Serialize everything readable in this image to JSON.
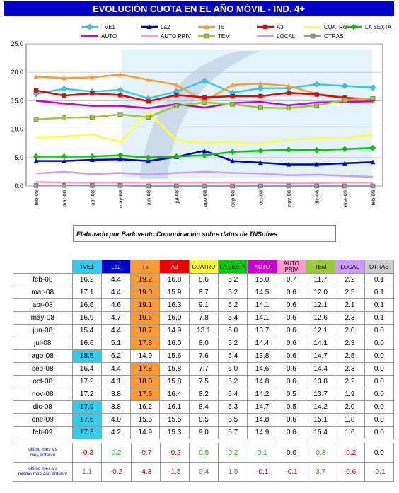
{
  "title": "EVOLUCIÓN CUOTA EN EL AÑO MÓVIL - IND. 4+",
  "caption": "Elaborado por Barlovento Comunicación sobre datos de TNSofres",
  "chart_data": {
    "type": "line",
    "categories": [
      "feb-08",
      "mar-08",
      "abr-08",
      "may-08",
      "jun-08",
      "jul-08",
      "ago-08",
      "sep-08",
      "oct-08",
      "nov-08",
      "dic-08",
      "ene-09",
      "feb-09"
    ],
    "ylim": [
      0,
      25
    ],
    "yticks": [
      "0.0",
      "5.0",
      "10.0",
      "15.0",
      "20.0",
      "25.0"
    ],
    "grid": true,
    "legend_position": "top",
    "series": [
      {
        "name": "TVE1",
        "color": "#33ccee",
        "marker": "diamond",
        "values": [
          16.2,
          17.1,
          16.6,
          16.9,
          15.4,
          16.6,
          18.5,
          16.4,
          17.2,
          17.2,
          17.9,
          17.6,
          17.3
        ]
      },
      {
        "name": "La2",
        "color": "#0000cc",
        "marker": "triangle",
        "values": [
          4.4,
          4.4,
          4.6,
          4.7,
          4.4,
          5.1,
          6.2,
          4.4,
          4.1,
          3.8,
          3.8,
          4.0,
          4.2
        ]
      },
      {
        "name": "T5",
        "color": "#ff9933",
        "marker": "triangle",
        "values": [
          19.2,
          19.0,
          19.1,
          19.6,
          18.7,
          17.8,
          14.9,
          17.8,
          18.0,
          17.6,
          16.2,
          15.6,
          14.9
        ]
      },
      {
        "name": "A3",
        "color": "#ee0000",
        "marker": "square",
        "values": [
          16.8,
          15.9,
          16.3,
          16.0,
          14.9,
          16.0,
          15.6,
          15.8,
          15.8,
          16.4,
          16.1,
          15.5,
          15.3
        ]
      },
      {
        "name": "CUATRO",
        "color": "#ffff33",
        "marker": "none",
        "values": [
          8.6,
          8.7,
          9.1,
          7.8,
          13.1,
          8.0,
          7.6,
          7.7,
          7.5,
          8.2,
          8.4,
          8.5,
          9.0
        ]
      },
      {
        "name": "LA SEXTA",
        "color": "#00cc00",
        "marker": "diamond",
        "values": [
          5.2,
          5.2,
          5.2,
          5.4,
          5.0,
          5.2,
          5.4,
          6.0,
          6.2,
          6.4,
          6.3,
          6.5,
          6.7
        ]
      },
      {
        "name": "AUTO",
        "color": "#cc00cc",
        "marker": "none",
        "values": [
          15.0,
          14.5,
          14.1,
          14.1,
          13.7,
          14.4,
          13.8,
          14.6,
          14.8,
          14.2,
          14.7,
          14.8,
          14.9
        ]
      },
      {
        "name": "AUTO PRIV",
        "color": "#ff99cc",
        "marker": "none",
        "values": [
          0.7,
          0.6,
          0.6,
          0.6,
          0.6,
          0.6,
          0.6,
          0.6,
          0.6,
          0.5,
          0.5,
          0.6,
          0.6
        ]
      },
      {
        "name": "TEM",
        "color": "#99cc33",
        "marker": "square",
        "values": [
          11.7,
          12.0,
          12.1,
          12.6,
          12.1,
          14.1,
          14.7,
          14.4,
          13.8,
          13.7,
          14.2,
          15.1,
          15.4
        ]
      },
      {
        "name": "LOCAL",
        "color": "#cc99ff",
        "marker": "none",
        "values": [
          2.2,
          2.5,
          2.1,
          2.3,
          2.0,
          2.3,
          2.5,
          2.3,
          2.2,
          1.9,
          2.0,
          1.8,
          1.6
        ]
      },
      {
        "name": "OTRAS",
        "color": "#999999",
        "marker": "square",
        "values": [
          0.1,
          0.1,
          0.1,
          0.1,
          0.0,
          0.0,
          0.0,
          0.0,
          0.0,
          0.0,
          0.0,
          0.0,
          0.0
        ]
      }
    ]
  },
  "table": {
    "headers": [
      {
        "label": "TVE1",
        "bg": "#33ccee",
        "fg": "#000000"
      },
      {
        "label": "La2",
        "bg": "#0000cc",
        "fg": "#ffffff"
      },
      {
        "label": "T5",
        "bg": "#ff9933",
        "fg": "#000000"
      },
      {
        "label": "A3",
        "bg": "#ee0000",
        "fg": "#ffffff"
      },
      {
        "label": "CUATRO",
        "bg": "#ffff33",
        "fg": "#000000"
      },
      {
        "label": "LA SEXTA",
        "bg": "#00cc00",
        "fg": "#000000"
      },
      {
        "label": "AUTO",
        "bg": "#cc00cc",
        "fg": "#ffffff"
      },
      {
        "label": "AUTO PRIV",
        "bg": "#ff99cc",
        "fg": "#000000"
      },
      {
        "label": "TEM",
        "bg": "#99cc33",
        "fg": "#000000"
      },
      {
        "label": "LOCAL",
        "bg": "#cc99ff",
        "fg": "#000000"
      },
      {
        "label": "OTRAS",
        "bg": "#cccccc",
        "fg": "#000000"
      }
    ],
    "highlight_colors": {
      "TVE1": "#33ccee",
      "T5": "#ff9933"
    },
    "rows": [
      {
        "month": "feb-08",
        "values": [
          "16.2",
          "4.4",
          "19.2",
          "16.8",
          "8.6",
          "5.2",
          "15.0",
          "0.7",
          "11.7",
          "2.2",
          "0.1"
        ],
        "hl": [
          2
        ]
      },
      {
        "month": "mar-08",
        "values": [
          "17.1",
          "4.4",
          "19.0",
          "15.9",
          "8.7",
          "5.2",
          "14.5",
          "0.6",
          "12.0",
          "2.5",
          "0.1"
        ],
        "hl": [
          2
        ]
      },
      {
        "month": "abr-08",
        "values": [
          "16.6",
          "4.6",
          "19.1",
          "16.3",
          "9.1",
          "5.2",
          "14.1",
          "0.6",
          "12.1",
          "2.1",
          "0.1"
        ],
        "hl": [
          2
        ]
      },
      {
        "month": "may-08",
        "values": [
          "16.9",
          "4.7",
          "19.6",
          "16.0",
          "7.8",
          "5.4",
          "14.1",
          "0.6",
          "12.6",
          "2.3",
          "0.1"
        ],
        "hl": [
          2
        ]
      },
      {
        "month": "jun-08",
        "values": [
          "15.4",
          "4.4",
          "18.7",
          "14.9",
          "13.1",
          "5.0",
          "13.7",
          "0.6",
          "12.1",
          "2.0",
          "0.0"
        ],
        "hl": [
          2
        ]
      },
      {
        "month": "jul-08",
        "values": [
          "16.6",
          "5.1",
          "17.8",
          "16.0",
          "8.0",
          "5.2",
          "14.4",
          "0.6",
          "14.1",
          "2.3",
          "0.0"
        ],
        "hl": [
          2
        ]
      },
      {
        "month": "ago-08",
        "values": [
          "18.5",
          "6.2",
          "14.9",
          "15.6",
          "7.6",
          "5.4",
          "13.8",
          "0.6",
          "14.7",
          "2.5",
          "0.0"
        ],
        "hl": [
          0
        ]
      },
      {
        "month": "sep-08",
        "values": [
          "16.4",
          "4.4",
          "17.8",
          "15.8",
          "7.7",
          "6.0",
          "14.6",
          "0.6",
          "14.4",
          "2.3",
          "0.0"
        ],
        "hl": [
          2
        ]
      },
      {
        "month": "oct-08",
        "values": [
          "17.2",
          "4.1",
          "18.0",
          "15.8",
          "7.5",
          "6.2",
          "14.8",
          "0.6",
          "13.8",
          "2.2",
          "0.0"
        ],
        "hl": [
          2
        ]
      },
      {
        "month": "nov-08",
        "values": [
          "17.2",
          "3.8",
          "17.6",
          "16.4",
          "8.2",
          "6.4",
          "14.2",
          "0.5",
          "13.7",
          "1.9",
          "0.0"
        ],
        "hl": [
          2
        ]
      },
      {
        "month": "dic-08",
        "values": [
          "17.9",
          "3.8",
          "16.2",
          "16.1",
          "8.4",
          "6.3",
          "14.7",
          "0.5",
          "14.2",
          "2.0",
          "0.0"
        ],
        "hl": [
          0
        ]
      },
      {
        "month": "ene-09",
        "values": [
          "17.6",
          "4.0",
          "15.6",
          "15.5",
          "8.5",
          "6.5",
          "14.8",
          "0.6",
          "15.1",
          "1.8",
          "0.0"
        ],
        "hl": [
          0
        ]
      },
      {
        "month": "feb-09",
        "values": [
          "17.3",
          "4.2",
          "14.9",
          "15.3",
          "9.0",
          "6.7",
          "14.9",
          "0.6",
          "15.4",
          "1.6",
          "0.0"
        ],
        "hl": [
          0
        ]
      }
    ],
    "summary": [
      {
        "label_line1": "último mes Vs",
        "label_line2": "mes anterior",
        "values": [
          "-0.3",
          "0.2",
          "-0.7",
          "-0.2",
          "0.5",
          "0.2",
          "0.1",
          "0.0",
          "0.3",
          "-0.2",
          "0.0"
        ]
      },
      {
        "label_line1": "último mes Vs",
        "label_line2": "mismo mes año anterior",
        "values": [
          "1.1",
          "-0.2",
          "-4.3",
          "-1.5",
          "0.4",
          "1.5",
          "-0.1",
          "-0.1",
          "3.7",
          "-0.6",
          "-0.1"
        ]
      }
    ]
  }
}
